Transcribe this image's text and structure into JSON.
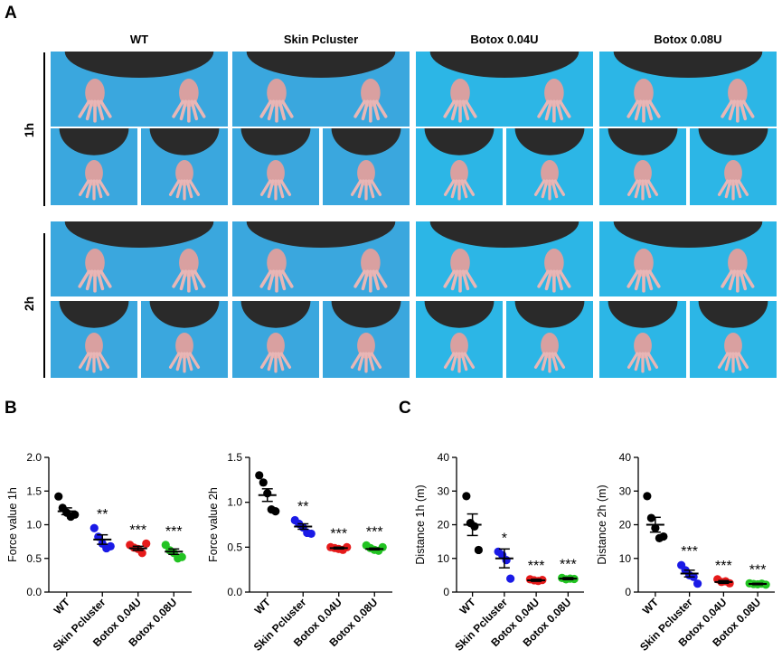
{
  "figure": {
    "panel_labels": [
      "A",
      "B",
      "C"
    ],
    "columns": [
      "WT",
      "Skin Pcluster",
      "Botox 0.04U",
      "Botox 0.08U"
    ],
    "rows": [
      "1h",
      "2h"
    ],
    "photo_backgrounds": [
      "#3aa7de",
      "#3aa7de",
      "#2cb6e6",
      "#2cb6e6"
    ],
    "colors": {
      "WT": "#000000",
      "Skin Pcluster": "#1a1ae6",
      "Botox 0.04U": "#e61a1a",
      "Botox 0.08U": "#22c322"
    }
  },
  "chart_data": [
    {
      "type": "scatter",
      "panel": "B",
      "ylabel": "Force value 1h",
      "ylim": [
        0,
        2.0
      ],
      "yticks": [
        0.0,
        0.5,
        1.0,
        1.5,
        2.0
      ],
      "categories": [
        "WT",
        "Skin Pcluster",
        "Botox 0.04U",
        "Botox 0.08U"
      ],
      "series": [
        {
          "points": [
            1.42,
            1.25,
            1.18,
            1.12,
            1.15
          ],
          "mean": 1.2,
          "sem": 0.05,
          "sig": ""
        },
        {
          "points": [
            0.95,
            0.82,
            0.72,
            0.65,
            0.68
          ],
          "mean": 0.78,
          "sem": 0.07,
          "sig": "**"
        },
        {
          "points": [
            0.7,
            0.66,
            0.64,
            0.58,
            0.72
          ],
          "mean": 0.65,
          "sem": 0.03,
          "sig": "***"
        },
        {
          "points": [
            0.7,
            0.62,
            0.58,
            0.5,
            0.52
          ],
          "mean": 0.6,
          "sem": 0.04,
          "sig": "***"
        }
      ]
    },
    {
      "type": "scatter",
      "panel": "B",
      "ylabel": "Force value 2h",
      "ylim": [
        0,
        1.5
      ],
      "yticks": [
        0.0,
        0.5,
        1.0,
        1.5
      ],
      "categories": [
        "WT",
        "Skin Pcluster",
        "Botox 0.04U",
        "Botox 0.08U"
      ],
      "series": [
        {
          "points": [
            1.3,
            1.22,
            1.1,
            0.92,
            0.9
          ],
          "mean": 1.08,
          "sem": 0.07,
          "sig": ""
        },
        {
          "points": [
            0.8,
            0.76,
            0.72,
            0.66,
            0.65
          ],
          "mean": 0.73,
          "sem": 0.03,
          "sig": "**"
        },
        {
          "points": [
            0.5,
            0.49,
            0.48,
            0.47,
            0.5
          ],
          "mean": 0.49,
          "sem": 0.01,
          "sig": "***"
        },
        {
          "points": [
            0.52,
            0.49,
            0.47,
            0.46,
            0.5
          ],
          "mean": 0.48,
          "sem": 0.01,
          "sig": "***"
        }
      ]
    },
    {
      "type": "scatter",
      "panel": "C",
      "ylabel": "Distance 1h (m)",
      "ylim": [
        0,
        40
      ],
      "yticks": [
        0,
        10,
        20,
        30,
        40
      ],
      "categories": [
        "WT",
        "Skin Pcluster",
        "Botox 0.04U",
        "Botox 0.08U"
      ],
      "series": [
        {
          "points": [
            28.5,
            20.5,
            19.5,
            12.5
          ],
          "mean": 20.0,
          "sem": 3.2,
          "sig": ""
        },
        {
          "points": [
            12.0,
            11.0,
            9.5,
            4.0
          ],
          "mean": 10.0,
          "sem": 2.8,
          "sig": "*"
        },
        {
          "points": [
            3.8,
            3.5,
            3.3,
            3.6
          ],
          "mean": 3.5,
          "sem": 0.3,
          "sig": "***"
        },
        {
          "points": [
            4.2,
            3.8,
            4.0,
            3.9
          ],
          "mean": 4.0,
          "sem": 0.3,
          "sig": "***"
        }
      ]
    },
    {
      "type": "scatter",
      "panel": "C",
      "ylabel": "Distance 2h (m)",
      "ylim": [
        0,
        40
      ],
      "yticks": [
        0,
        10,
        20,
        30,
        40
      ],
      "categories": [
        "WT",
        "Skin Pcluster",
        "Botox 0.04U",
        "Botox 0.08U"
      ],
      "series": [
        {
          "points": [
            28.5,
            22.0,
            19.0,
            16.0,
            16.5
          ],
          "mean": 20.0,
          "sem": 2.2,
          "sig": ""
        },
        {
          "points": [
            8.0,
            6.5,
            5.0,
            4.5,
            2.5
          ],
          "mean": 5.5,
          "sem": 1.0,
          "sig": "***"
        },
        {
          "points": [
            3.8,
            3.0,
            3.2,
            2.6
          ],
          "mean": 3.0,
          "sem": 0.4,
          "sig": "***"
        },
        {
          "points": [
            2.6,
            2.4,
            2.3,
            2.5,
            2.2
          ],
          "mean": 2.4,
          "sem": 0.2,
          "sig": "***"
        }
      ]
    }
  ]
}
